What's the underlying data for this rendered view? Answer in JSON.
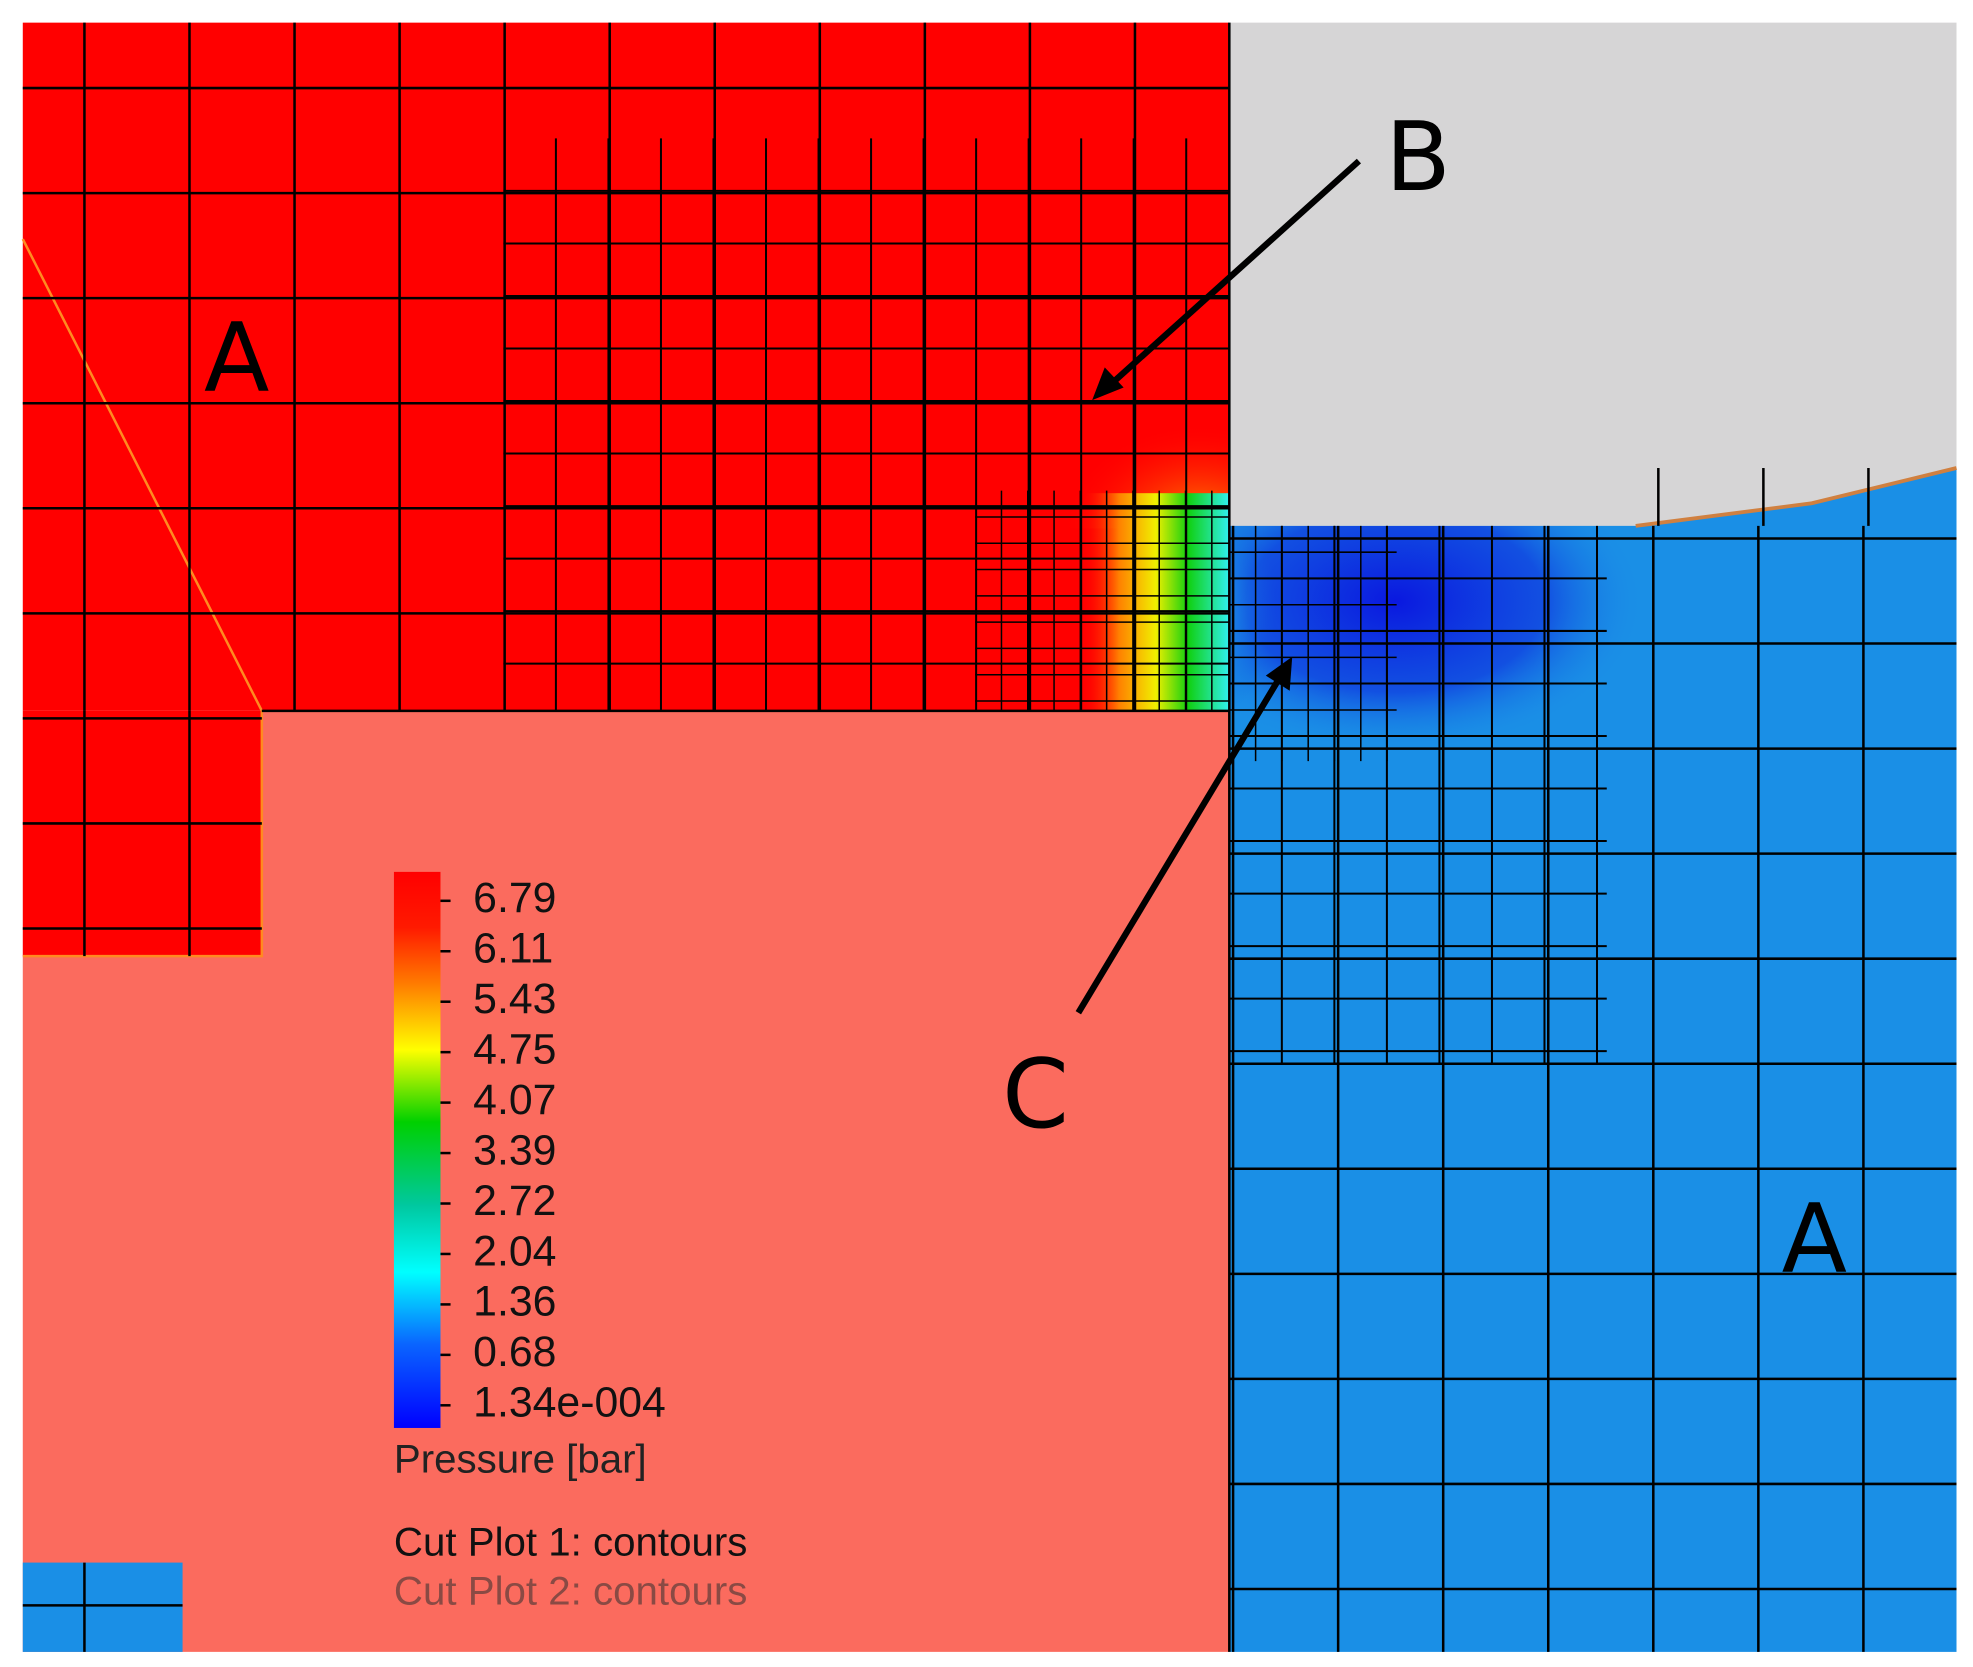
{
  "labels": {
    "region_a_left": "A",
    "region_b": "B",
    "region_c": "C",
    "region_a_right": "A"
  },
  "legend": {
    "ticks": [
      "6.79",
      "6.11",
      "5.43",
      "4.75",
      "4.07",
      "3.39",
      "2.72",
      "2.04",
      "1.36",
      "0.68",
      "1.34e-004"
    ],
    "quantity": "Pressure [bar]",
    "plots": [
      "Cut Plot 1: contours",
      "Cut Plot 2: contours"
    ]
  }
}
